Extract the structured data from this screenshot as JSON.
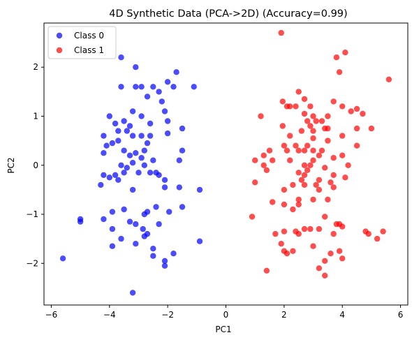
{
  "chart_data": {
    "type": "scatter",
    "title": "4D Synthetic Data (PCA->2D) (Accuracy=0.99)",
    "xlabel": "PC1",
    "ylabel": "PC2",
    "xlim": [
      -6.25,
      6.25
    ],
    "ylim": [
      -2.85,
      2.9
    ],
    "xticks": [
      -6,
      -4,
      -2,
      0,
      2,
      4,
      6
    ],
    "yticks": [
      -2,
      -1,
      0,
      1,
      2
    ],
    "grid": false,
    "legend_position": "top-left",
    "series": [
      {
        "name": "Class 0",
        "color": "#0000ff",
        "points": [
          [
            -3.6,
            2.2
          ],
          [
            -3.1,
            2.0
          ],
          [
            -3.6,
            1.6
          ],
          [
            -3.1,
            1.6
          ],
          [
            -2.9,
            1.6
          ],
          [
            -2.5,
            1.6
          ],
          [
            -2.3,
            1.5
          ],
          [
            -1.8,
            1.6
          ],
          [
            -1.1,
            1.6
          ],
          [
            -1.7,
            1.9
          ],
          [
            -2.7,
            1.4
          ],
          [
            -2.2,
            1.3
          ],
          [
            -2.0,
            1.7
          ],
          [
            -2.1,
            1.1
          ],
          [
            -2.0,
            0.9
          ],
          [
            -4.0,
            1.0
          ],
          [
            -3.8,
            0.85
          ],
          [
            -3.5,
            0.9
          ],
          [
            -3.3,
            0.8
          ],
          [
            -3.2,
            1.1
          ],
          [
            -2.9,
            1.0
          ],
          [
            -2.6,
            0.85
          ],
          [
            -2.0,
            0.65
          ],
          [
            -1.5,
            0.75
          ],
          [
            -4.2,
            0.6
          ],
          [
            -4.1,
            0.4
          ],
          [
            -3.7,
            0.7
          ],
          [
            -3.4,
            0.7
          ],
          [
            -3.2,
            0.6
          ],
          [
            -2.9,
            0.6
          ],
          [
            -2.6,
            0.6
          ],
          [
            -3.7,
            0.5
          ],
          [
            -4.2,
            0.25
          ],
          [
            -3.9,
            0.45
          ],
          [
            -3.5,
            0.3
          ],
          [
            -3.3,
            0.2
          ],
          [
            -3.1,
            0.25
          ],
          [
            -2.8,
            0.3
          ],
          [
            -2.7,
            0.45
          ],
          [
            -2.5,
            0.1
          ],
          [
            -1.5,
            0.3
          ],
          [
            -1.6,
            0.1
          ],
          [
            -4.2,
            -0.2
          ],
          [
            -4.0,
            -0.25
          ],
          [
            -3.8,
            -0.2
          ],
          [
            -3.6,
            0.0
          ],
          [
            -3.4,
            -0.05
          ],
          [
            -3.2,
            0.05
          ],
          [
            -2.9,
            0.15
          ],
          [
            -2.8,
            0.0
          ],
          [
            -2.6,
            -0.15
          ],
          [
            -2.3,
            -0.2
          ],
          [
            -4.3,
            -0.4
          ],
          [
            -3.7,
            -0.3
          ],
          [
            -3.5,
            -0.15
          ],
          [
            -3.0,
            -0.15
          ],
          [
            -2.4,
            -0.15
          ],
          [
            -2.1,
            -0.3
          ],
          [
            -3.2,
            -0.5
          ],
          [
            -2.1,
            -0.45
          ],
          [
            -1.6,
            -0.45
          ],
          [
            -0.9,
            -0.5
          ],
          [
            -3.5,
            -0.9
          ],
          [
            -3.9,
            -0.95
          ],
          [
            -2.7,
            -0.95
          ],
          [
            -2.4,
            -0.85
          ],
          [
            -1.95,
            -0.95
          ],
          [
            -1.5,
            -0.85
          ],
          [
            -5.0,
            -1.1
          ],
          [
            -5.0,
            -1.15
          ],
          [
            -4.2,
            -1.1
          ],
          [
            -3.3,
            -1.15
          ],
          [
            -3.1,
            -1.2
          ],
          [
            -2.8,
            -1.0
          ],
          [
            -2.3,
            -1.2
          ],
          [
            -3.9,
            -1.3
          ],
          [
            -2.85,
            -1.3
          ],
          [
            -3.6,
            -1.5
          ],
          [
            -2.8,
            -1.45
          ],
          [
            -2.7,
            -1.4
          ],
          [
            -0.9,
            -1.55
          ],
          [
            -3.9,
            -1.65
          ],
          [
            -3.1,
            -1.6
          ],
          [
            -2.5,
            -1.7
          ],
          [
            -2.5,
            -1.85
          ],
          [
            -2.1,
            -1.95
          ],
          [
            -2.1,
            -2.05
          ],
          [
            -1.8,
            -1.8
          ],
          [
            -5.6,
            -1.9
          ],
          [
            -3.2,
            -2.6
          ]
        ]
      },
      {
        "name": "Class 1",
        "color": "#ff0000",
        "points": [
          [
            1.9,
            2.7
          ],
          [
            3.8,
            2.2
          ],
          [
            4.1,
            2.3
          ],
          [
            3.9,
            1.9
          ],
          [
            5.6,
            1.75
          ],
          [
            2.5,
            1.5
          ],
          [
            2.7,
            1.35
          ],
          [
            3.7,
            1.3
          ],
          [
            4.5,
            1.15
          ],
          [
            1.95,
            1.3
          ],
          [
            2.9,
            1.2
          ],
          [
            3.5,
            1.0
          ],
          [
            2.1,
            1.2
          ],
          [
            2.4,
            1.2
          ],
          [
            4.0,
            1.2
          ],
          [
            3.3,
            0.9
          ],
          [
            2.8,
            0.9
          ],
          [
            2.7,
            1.05
          ],
          [
            3.1,
            0.9
          ],
          [
            3.0,
            1.0
          ],
          [
            2.6,
            0.7
          ],
          [
            3.5,
            0.75
          ],
          [
            4.3,
            1.1
          ],
          [
            4.7,
            1.05
          ],
          [
            1.2,
            1.0
          ],
          [
            1.95,
            0.8
          ],
          [
            2.2,
            1.2
          ],
          [
            2.9,
            0.8
          ],
          [
            2.2,
            0.6
          ],
          [
            3.0,
            0.7
          ],
          [
            3.4,
            0.75
          ],
          [
            4.5,
            0.75
          ],
          [
            5.0,
            0.75
          ],
          [
            4.0,
            0.6
          ],
          [
            2.0,
            0.4
          ],
          [
            3.0,
            0.55
          ],
          [
            2.4,
            0.4
          ],
          [
            2.5,
            0.3
          ],
          [
            2.7,
            0.3
          ],
          [
            2.8,
            0.4
          ],
          [
            3.5,
            0.5
          ],
          [
            1.5,
            0.3
          ],
          [
            2.1,
            0.3
          ],
          [
            3.0,
            0.3
          ],
          [
            3.3,
            0.3
          ],
          [
            4.5,
            0.4
          ],
          [
            1.3,
            0.2
          ],
          [
            1.6,
            0.1
          ],
          [
            2.2,
            0.1
          ],
          [
            3.7,
            0.15
          ],
          [
            3.2,
            0.2
          ],
          [
            4.0,
            0.2
          ],
          [
            1.0,
            0.1
          ],
          [
            2.7,
            0.0
          ],
          [
            3.0,
            0.1
          ],
          [
            3.4,
            -0.05
          ],
          [
            4.2,
            0.0
          ],
          [
            1.3,
            0.0
          ],
          [
            1.4,
            -0.1
          ],
          [
            2.8,
            -0.1
          ],
          [
            3.7,
            -0.2
          ],
          [
            4.1,
            -0.25
          ],
          [
            2.5,
            -0.15
          ],
          [
            2.7,
            -0.2
          ],
          [
            2.9,
            0.0
          ],
          [
            2.6,
            -0.3
          ],
          [
            3.2,
            -0.3
          ],
          [
            3.6,
            -0.35
          ],
          [
            2.0,
            -0.5
          ],
          [
            2.3,
            -0.4
          ],
          [
            2.7,
            -0.4
          ],
          [
            3.1,
            -0.4
          ],
          [
            3.2,
            -0.5
          ],
          [
            3.7,
            -0.45
          ],
          [
            1.0,
            -0.35
          ],
          [
            2.5,
            -0.7
          ],
          [
            2.3,
            -0.9
          ],
          [
            3.5,
            -0.7
          ],
          [
            1.6,
            -0.75
          ],
          [
            2.0,
            -0.8
          ],
          [
            2.5,
            -0.8
          ],
          [
            3.0,
            -0.7
          ],
          [
            0.9,
            -1.05
          ],
          [
            3.4,
            -1.05
          ],
          [
            3.9,
            -1.2
          ],
          [
            3.8,
            -1.2
          ],
          [
            4.0,
            -1.25
          ],
          [
            2.7,
            -1.3
          ],
          [
            3.2,
            -1.3
          ],
          [
            2.9,
            -1.3
          ],
          [
            3.7,
            -1.4
          ],
          [
            4.8,
            -1.35
          ],
          [
            1.7,
            -1.4
          ],
          [
            2.4,
            -1.35
          ],
          [
            2.5,
            -1.4
          ],
          [
            4.9,
            -1.4
          ],
          [
            2.0,
            -1.35
          ],
          [
            5.4,
            -1.35
          ],
          [
            5.2,
            -1.5
          ],
          [
            1.9,
            -1.6
          ],
          [
            3.0,
            -1.65
          ],
          [
            3.9,
            -1.75
          ],
          [
            2.0,
            -1.75
          ],
          [
            2.1,
            -1.8
          ],
          [
            2.3,
            -1.75
          ],
          [
            3.6,
            -1.8
          ],
          [
            4.0,
            -1.9
          ],
          [
            3.4,
            -1.95
          ],
          [
            1.4,
            -2.15
          ],
          [
            3.2,
            -2.1
          ],
          [
            3.4,
            -2.25
          ]
        ]
      }
    ]
  }
}
